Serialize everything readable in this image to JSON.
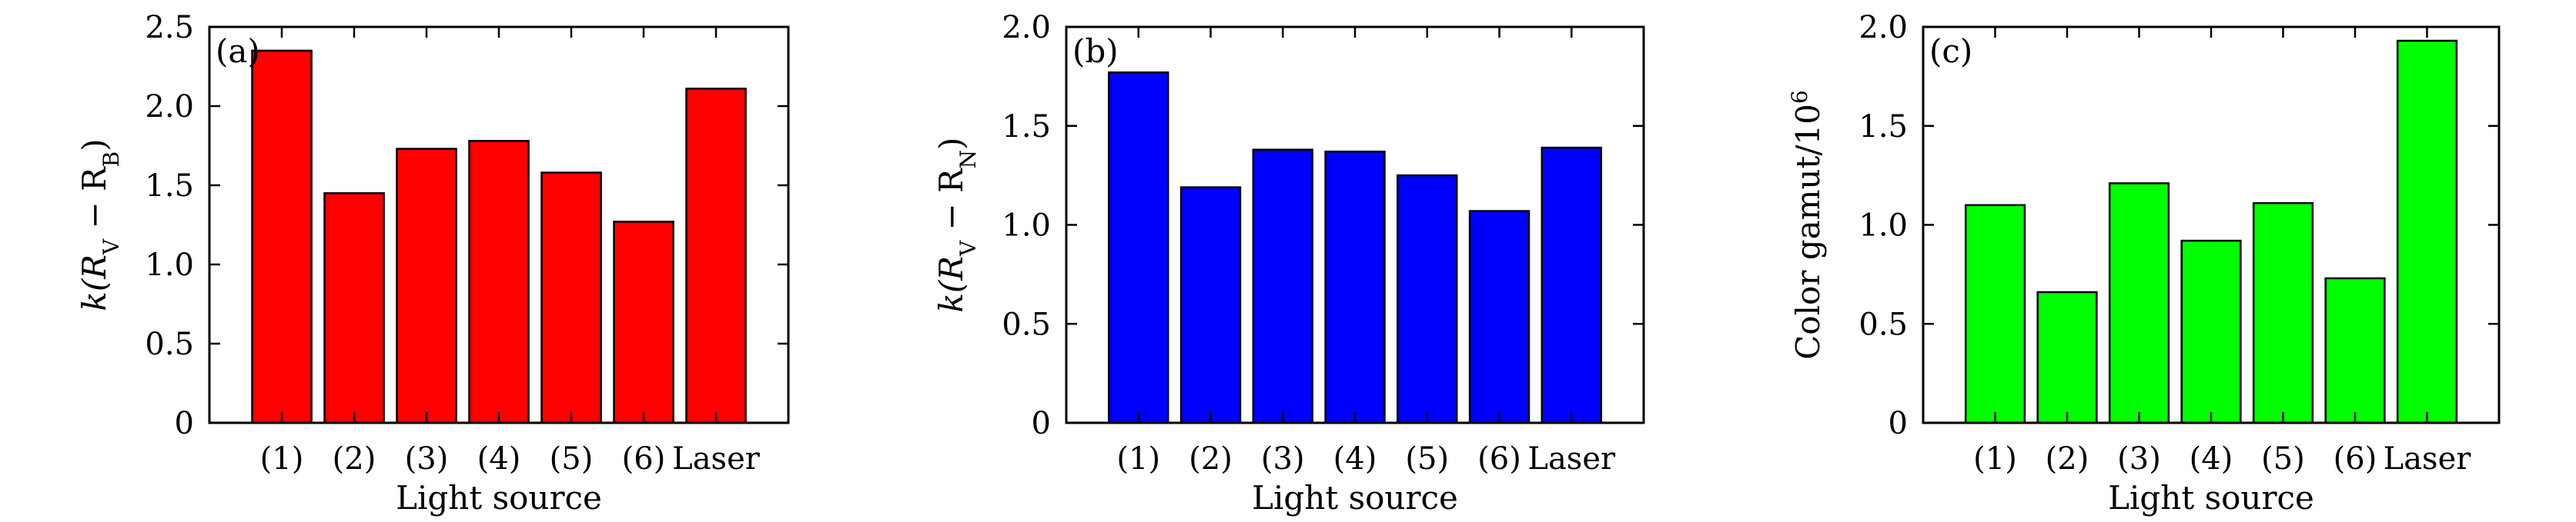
{
  "chart_data": [
    {
      "type": "bar",
      "panel_tag": "(a)",
      "categories": [
        "(1)",
        "(2)",
        "(3)",
        "(4)",
        "(5)",
        "(6)",
        "Laser"
      ],
      "values": [
        2.35,
        1.45,
        1.73,
        1.78,
        1.58,
        1.27,
        2.11
      ],
      "xlabel": "Light source",
      "ylabel": "k(RV − RB)",
      "ylabel_parts": {
        "pre": "k(R",
        "sub1": "V",
        "mid": " − R",
        "sub2": "B",
        "post": ")"
      },
      "ylim": [
        0,
        2.5
      ],
      "yticks": [
        0,
        0.5,
        1.0,
        1.5,
        2.0,
        2.5
      ],
      "ytick_labels": [
        "0",
        "0.5",
        "1.0",
        "1.5",
        "2.0",
        "2.5"
      ],
      "bar_color": "#ff0000",
      "grid": false
    },
    {
      "type": "bar",
      "panel_tag": "(b)",
      "categories": [
        "(1)",
        "(2)",
        "(3)",
        "(4)",
        "(5)",
        "(6)",
        "Laser"
      ],
      "values": [
        1.77,
        1.19,
        1.38,
        1.37,
        1.25,
        1.07,
        1.39
      ],
      "xlabel": "Light source",
      "ylabel": "k(RV − RN)",
      "ylabel_parts": {
        "pre": "k(R",
        "sub1": "V",
        "mid": " − R",
        "sub2": "N",
        "post": ")"
      },
      "ylim": [
        0,
        2.0
      ],
      "yticks": [
        0,
        0.5,
        1.0,
        1.5,
        2.0
      ],
      "ytick_labels": [
        "0",
        "0.5",
        "1.0",
        "1.5",
        "2.0"
      ],
      "bar_color": "#0000ff",
      "grid": false
    },
    {
      "type": "bar",
      "panel_tag": "(c)",
      "categories": [
        "(1)",
        "(2)",
        "(3)",
        "(4)",
        "(5)",
        "(6)",
        "Laser"
      ],
      "values": [
        1.1,
        0.66,
        1.21,
        0.92,
        1.11,
        0.73,
        1.93
      ],
      "xlabel": "Light source",
      "ylabel": "Color gamut/10^6",
      "ylabel_parts": {
        "pre": "Color gamut/10",
        "sup": "6"
      },
      "ylim": [
        0,
        2.0
      ],
      "yticks": [
        0,
        0.5,
        1.0,
        1.5,
        2.0
      ],
      "ytick_labels": [
        "0",
        "0.5",
        "1.0",
        "1.5",
        "2.0"
      ],
      "bar_color": "#00ff00",
      "grid": false
    }
  ]
}
